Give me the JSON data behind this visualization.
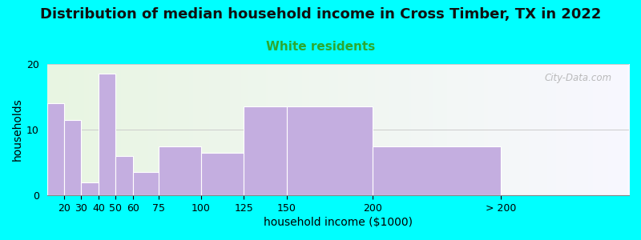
{
  "title": "Distribution of median household income in Cross Timber, TX in 2022",
  "subtitle": "White residents",
  "xlabel": "household income ($1000)",
  "ylabel": "households",
  "background_color": "#00FFFF",
  "bar_color": "#c4aee0",
  "bar_edge_color": "#ffffff",
  "bar_lefts": [
    10,
    20,
    30,
    40,
    50,
    60,
    75,
    100,
    125,
    150,
    200
  ],
  "bar_widths": [
    10,
    10,
    10,
    10,
    10,
    15,
    25,
    25,
    25,
    50,
    75
  ],
  "bar_heights": [
    14,
    11.5,
    2.0,
    18.5,
    6.0,
    3.5,
    7.5,
    6.5,
    13.5,
    13.5,
    7.5
  ],
  "xtick_positions": [
    20,
    30,
    40,
    50,
    60,
    75,
    100,
    125,
    150,
    200,
    275
  ],
  "xtick_labels": [
    "20",
    "30",
    "40",
    "50",
    "60",
    "75",
    "100",
    "125",
    "150",
    "200",
    "> 200"
  ],
  "ylim": [
    0,
    20
  ],
  "xlim": [
    10,
    350
  ],
  "yticks": [
    0,
    10,
    20
  ],
  "title_fontsize": 13,
  "subtitle_fontsize": 11,
  "subtitle_color": "#2ca830",
  "axis_label_fontsize": 10,
  "tick_fontsize": 9,
  "watermark": "City-Data.com",
  "plot_bg_color_left": "#e8f5e2",
  "plot_bg_color_right": "#f8f8ff"
}
